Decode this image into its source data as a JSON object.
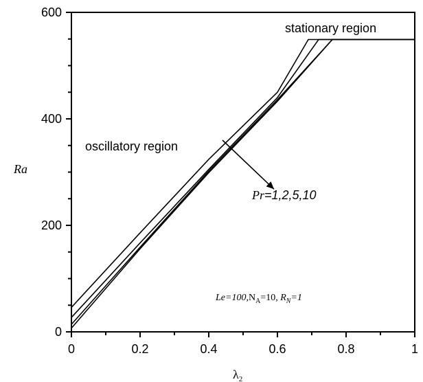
{
  "chart_data": {
    "type": "line",
    "title": "",
    "xlabel": "λ",
    "xlabel_sub": "2",
    "ylabel": "Ra",
    "xlim": [
      0,
      1
    ],
    "ylim": [
      0,
      600
    ],
    "x_ticks": [
      "0",
      "0.2",
      "0.4",
      "0.6",
      "0.8",
      "1"
    ],
    "y_ticks": [
      "0",
      "200",
      "400",
      "600"
    ],
    "grid": false,
    "series": [
      {
        "name": "",
        "points": [
          [
            0,
            46
          ],
          [
            0.2,
            186
          ],
          [
            0.4,
            324
          ],
          [
            0.6,
            450
          ],
          [
            0.69,
            549
          ],
          [
            1,
            549
          ]
        ]
      },
      {
        "name": "",
        "points": [
          [
            0,
            27
          ],
          [
            0.2,
            167
          ],
          [
            0.4,
            305
          ],
          [
            0.6,
            440
          ],
          [
            0.72,
            549
          ],
          [
            1,
            549
          ]
        ]
      },
      {
        "name": "",
        "points": [
          [
            0,
            14
          ],
          [
            0.2,
            159
          ],
          [
            0.4,
            302
          ],
          [
            0.6,
            436
          ],
          [
            0.76,
            549
          ],
          [
            1,
            549
          ]
        ]
      },
      {
        "name": "",
        "points": [
          [
            0,
            7
          ],
          [
            0.2,
            156
          ],
          [
            0.4,
            299
          ],
          [
            0.6,
            433
          ],
          [
            0.76,
            549
          ],
          [
            1,
            549
          ]
        ]
      }
    ],
    "annotations": {
      "stationary": "stationary region",
      "oscillatory": "oscillatory region",
      "pr_label_italic": "Pr",
      "pr_label_values": "=1,2,5,10",
      "params": {
        "le": "Le=100,",
        "na": "N",
        "na_sub": "A",
        "na_val": "=10, ",
        "rn": "R",
        "rn_sub": "N",
        "rn_val": "=1"
      }
    },
    "arrow": {
      "from": [
        0.44,
        360
      ],
      "to": [
        0.59,
        268
      ]
    }
  }
}
